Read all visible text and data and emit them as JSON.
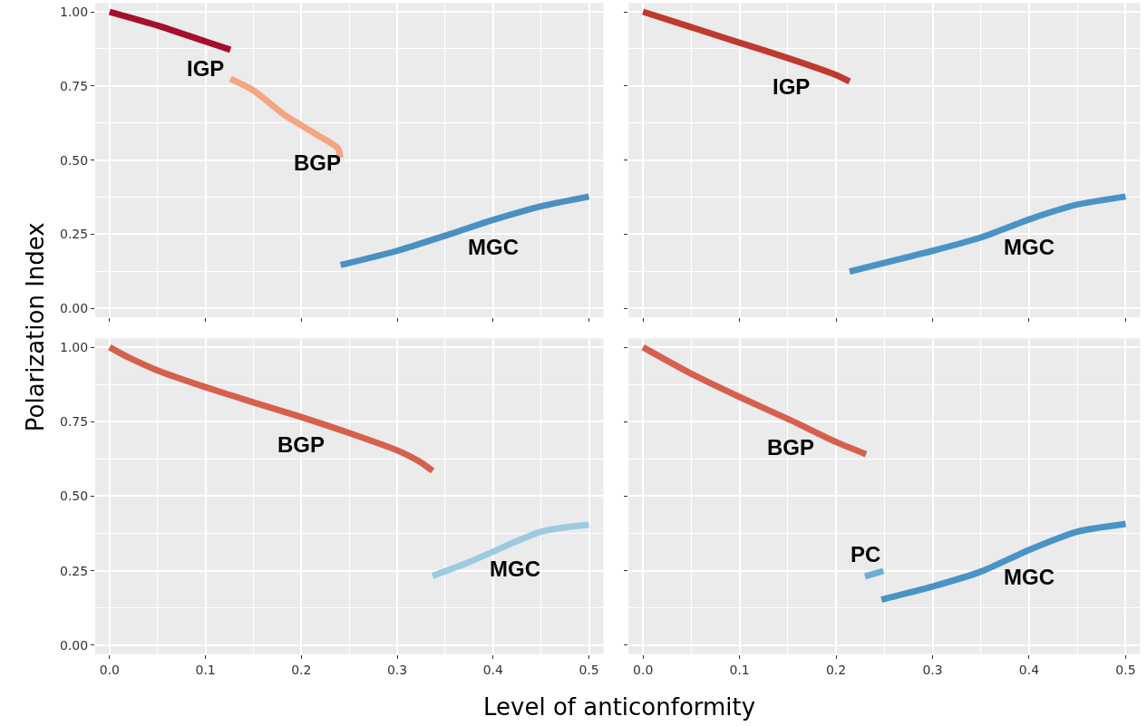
{
  "chart_data": [
    {
      "type": "line",
      "ylabel": "Polarization Index",
      "xlim": [
        -0.015,
        0.515
      ],
      "ylim": [
        -0.03,
        1.03
      ],
      "xticks": [
        0,
        0.1,
        0.2,
        0.3,
        0.4,
        0.5
      ],
      "yticks": [
        {
          "value": 0,
          "label": "0.00"
        },
        {
          "value": 0.25,
          "label": "0.25"
        },
        {
          "value": 0.5,
          "label": "0.50"
        },
        {
          "value": 0.75,
          "label": "0.75"
        },
        {
          "value": 1,
          "label": "1.00"
        }
      ],
      "grid": true,
      "tick_labels": "y",
      "series": [
        {
          "name": "IGP",
          "color": "#a50f2b",
          "x": [
            0,
            0.05,
            0.1,
            0.126
          ],
          "values": [
            1.0,
            0.954,
            0.9,
            0.872
          ]
        },
        {
          "name": "BGP",
          "color": "#f4a582",
          "x": [
            0.126,
            0.15,
            0.183,
            0.217,
            0.238,
            0.241
          ],
          "values": [
            0.774,
            0.735,
            0.651,
            0.584,
            0.54,
            0.508
          ]
        },
        {
          "name": "MGC",
          "color": "#4a90c2",
          "x": [
            0.241,
            0.3,
            0.349,
            0.4,
            0.45,
            0.5
          ],
          "values": [
            0.146,
            0.194,
            0.244,
            0.298,
            0.344,
            0.377
          ]
        }
      ]
    },
    {
      "type": "line",
      "xlim": [
        -0.015,
        0.515
      ],
      "ylim": [
        -0.03,
        1.03
      ],
      "xticks": [
        0,
        0.1,
        0.2,
        0.3,
        0.4,
        0.5
      ],
      "yticks": [
        0,
        0.25,
        0.5,
        0.75,
        1
      ],
      "grid": true,
      "tick_labels": false,
      "series": [
        {
          "name": "IGP",
          "color": "#c0392f",
          "x": [
            0,
            0.1,
            0.153,
            0.2,
            0.214
          ],
          "values": [
            1.0,
            0.896,
            0.841,
            0.787,
            0.765
          ]
        },
        {
          "name": "MGC",
          "color": "#4a93c6",
          "x": [
            0.214,
            0.3,
            0.35,
            0.4,
            0.45,
            0.5
          ],
          "values": [
            0.124,
            0.194,
            0.239,
            0.3,
            0.35,
            0.377
          ]
        }
      ]
    },
    {
      "type": "line",
      "xlabel": "Level of anticonformity",
      "xlim": [
        -0.015,
        0.515
      ],
      "ylim": [
        -0.03,
        1.03
      ],
      "xticks": [
        {
          "value": 0,
          "label": "0.0"
        },
        {
          "value": 0.1,
          "label": "0.1"
        },
        {
          "value": 0.2,
          "label": "0.2"
        },
        {
          "value": 0.3,
          "label": "0.3"
        },
        {
          "value": 0.4,
          "label": "0.4"
        },
        {
          "value": 0.5,
          "label": "0.5"
        }
      ],
      "yticks": [
        {
          "value": 0,
          "label": "0.00"
        },
        {
          "value": 0.25,
          "label": "0.25"
        },
        {
          "value": 0.5,
          "label": "0.50"
        },
        {
          "value": 0.75,
          "label": "0.75"
        },
        {
          "value": 1,
          "label": "1.00"
        }
      ],
      "grid": true,
      "series": [
        {
          "name": "BGP",
          "color": "#d6604d",
          "x": [
            0,
            0.019,
            0.05,
            0.1,
            0.149,
            0.2,
            0.252,
            0.3,
            0.324,
            0.337
          ],
          "values": [
            1.0,
            0.967,
            0.922,
            0.866,
            0.816,
            0.766,
            0.71,
            0.654,
            0.615,
            0.585
          ]
        },
        {
          "name": "MGC",
          "color": "#9ecae1",
          "x": [
            0.337,
            0.372,
            0.4,
            0.423,
            0.45,
            0.474,
            0.5
          ],
          "values": [
            0.232,
            0.275,
            0.314,
            0.347,
            0.381,
            0.395,
            0.404
          ]
        }
      ]
    },
    {
      "type": "line",
      "xlim": [
        -0.015,
        0.515
      ],
      "ylim": [
        -0.03,
        1.03
      ],
      "xticks": [
        {
          "value": 0,
          "label": "0.0"
        },
        {
          "value": 0.1,
          "label": "0.1"
        },
        {
          "value": 0.2,
          "label": "0.2"
        },
        {
          "value": 0.3,
          "label": "0.3"
        },
        {
          "value": 0.4,
          "label": "0.4"
        },
        {
          "value": 0.5,
          "label": "0.5"
        }
      ],
      "yticks": [
        0,
        0.25,
        0.5,
        0.75,
        1
      ],
      "grid": true,
      "tick_labels": "x",
      "series": [
        {
          "name": "BGP",
          "color": "#d6604d",
          "x": [
            0,
            0.05,
            0.1,
            0.153,
            0.2,
            0.231
          ],
          "values": [
            1.0,
            0.911,
            0.833,
            0.755,
            0.682,
            0.641
          ]
        },
        {
          "name": "PC",
          "color": "#6aaed6",
          "x": [
            0.23,
            0.249
          ],
          "values": [
            0.231,
            0.249
          ]
        },
        {
          "name": "MGC",
          "color": "#4a93c6",
          "x": [
            0.247,
            0.3,
            0.35,
            0.4,
            0.45,
            0.5
          ],
          "values": [
            0.153,
            0.197,
            0.247,
            0.32,
            0.381,
            0.407
          ]
        }
      ]
    }
  ]
}
